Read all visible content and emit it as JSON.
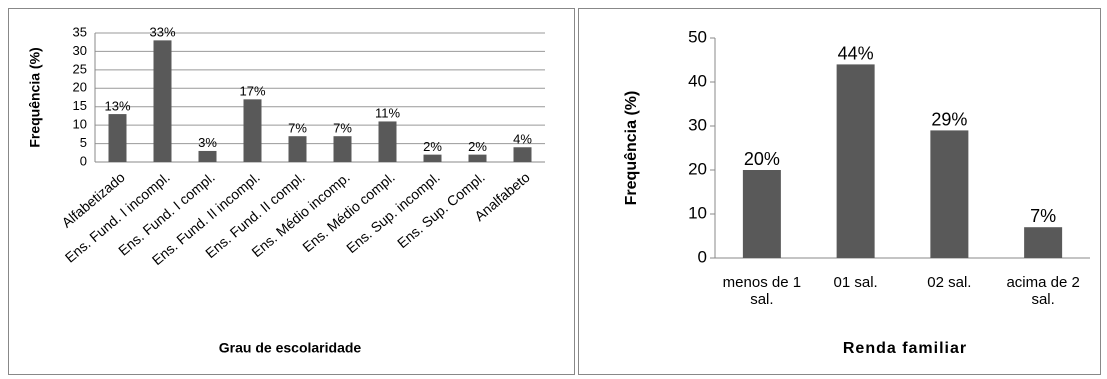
{
  "chart_data": [
    {
      "type": "bar",
      "y_label": "Frequência (%)",
      "x_label": "Grau de escolaridade",
      "categories": [
        "Alfabetizado",
        "Ens. Fund. I incompl.",
        "Ens. Fund. I compl.",
        "Ens. Fund. II incompl.",
        "Ens. Fund. II compl.",
        "Ens. Médio incomp.",
        "Ens. Médio compl.",
        "Ens. Sup. incompl.",
        "Ens. Sup. Compl.",
        "Analfabeto"
      ],
      "values": [
        13,
        33,
        3,
        17,
        7,
        7,
        11,
        2,
        2,
        4
      ],
      "value_labels": [
        "13%",
        "33%",
        "3%",
        "17%",
        "7%",
        "7%",
        "11%",
        "2%",
        "2%",
        "4%"
      ],
      "color": "#595959",
      "ylim": [
        0,
        35
      ],
      "yticks": [
        0,
        5,
        10,
        15,
        20,
        25,
        30,
        35
      ],
      "grid": true
    },
    {
      "type": "bar",
      "y_label": "Frequência (%)",
      "x_label": "Renda familiar",
      "categories": [
        "menos de 1 sal.",
        "01 sal.",
        "02 sal.",
        "acima de 2 sal."
      ],
      "values": [
        20,
        44,
        29,
        7
      ],
      "value_labels": [
        "20%",
        "44%",
        "29%",
        "7%"
      ],
      "color": "#595959",
      "ylim": [
        0,
        50
      ],
      "yticks": [
        0,
        10,
        20,
        30,
        40,
        50
      ],
      "grid": false
    }
  ]
}
